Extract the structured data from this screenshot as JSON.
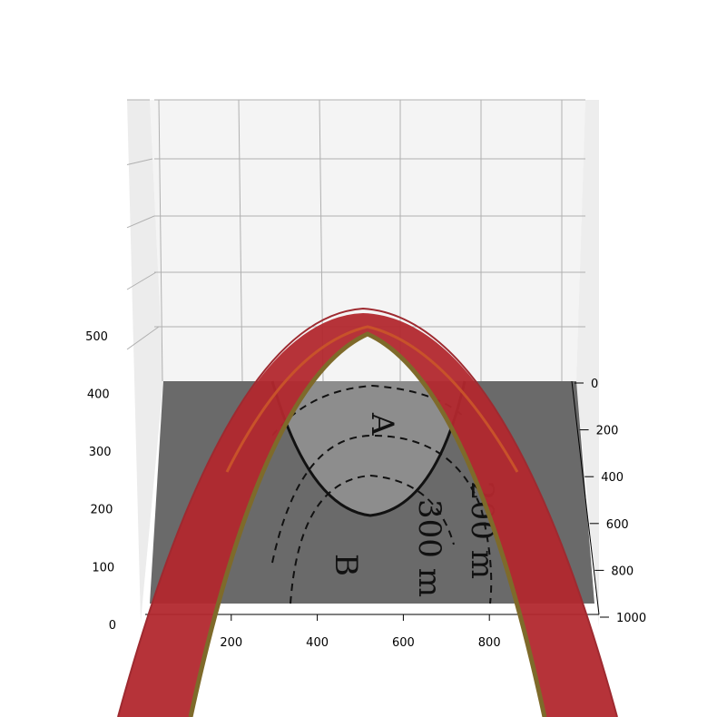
{
  "chart_data": {
    "type": "3d-surface",
    "title": "",
    "xlabel": "",
    "ylabel": "",
    "zlabel": "",
    "x_ticks": [
      200,
      400,
      600,
      800
    ],
    "y_ticks": [
      0,
      200,
      400,
      600,
      800,
      1000
    ],
    "z_ticks": [
      0,
      100,
      200,
      300,
      400,
      500
    ],
    "xlim": [
      0,
      1000
    ],
    "ylim": [
      0,
      1000
    ],
    "zlim": [
      0,
      550
    ],
    "grid": true,
    "floor_image": {
      "labels": [
        "A",
        "B",
        "200 m",
        "300 m"
      ],
      "note": "contour map with solid and dashed contour lines on grey background"
    },
    "surface": {
      "description": "arched ribbon surface",
      "peak_z": 520,
      "colors": [
        "#b5282e",
        "#8a6a2a",
        "#c04a2a"
      ]
    }
  }
}
